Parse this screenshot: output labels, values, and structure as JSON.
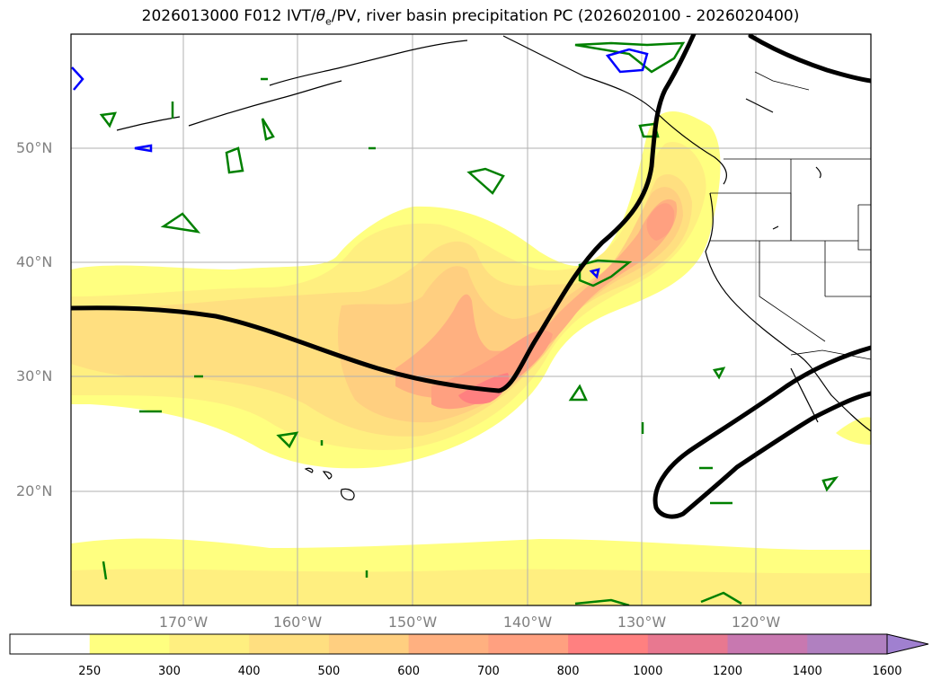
{
  "title": {
    "prefix": "2026013000 F012 IVT/",
    "theta": "θ",
    "theta_sub": "e",
    "suffix": "/PV, river basin precipitation PC (2026020100 - 2026020400)"
  },
  "map": {
    "lat_labels": [
      "50°N",
      "40°N",
      "30°N",
      "20°N"
    ],
    "lon_labels": [
      "170°W",
      "160°W",
      "150°W",
      "140°W",
      "130°W",
      "120°W"
    ],
    "colors": {
      "land_outline": "#000000",
      "grid": "#b0b0b0",
      "pv_contour": "#000000",
      "theta_green": "#008000",
      "theta_blue": "#0000ff"
    }
  },
  "colorbar": {
    "levels": [
      "250",
      "300",
      "400",
      "500",
      "600",
      "700",
      "800",
      "1000",
      "1200",
      "1400",
      "1600"
    ],
    "colors": [
      "#ffffff",
      "#ffff80",
      "#ffef80",
      "#ffdf80",
      "#ffcf80",
      "#ffb080",
      "#ffa080",
      "#ff8080",
      "#e87890",
      "#c878b0",
      "#b080c0",
      "#a080d0"
    ]
  }
}
